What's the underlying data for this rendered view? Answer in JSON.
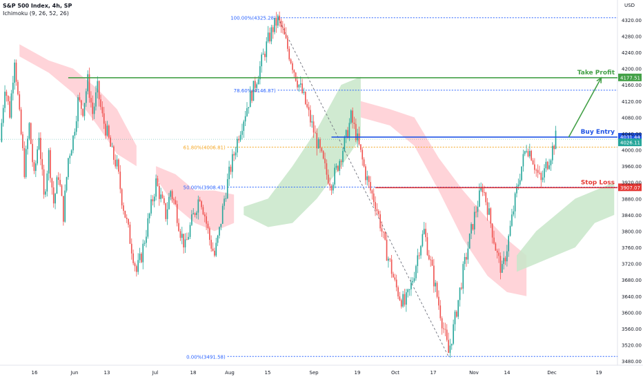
{
  "header": {
    "symbol": "S&P 500 Index, 4h, SP",
    "indicator": "Ichimoku (9, 26, 52, 26)",
    "currency": "USD"
  },
  "colors": {
    "up": "#26a69a",
    "down": "#ef5350",
    "cloud_bull": "#c8e6c9",
    "cloud_bear": "#ffcdd2",
    "take_profit": "#43a047",
    "buy_entry": "#1e53e5",
    "stop_loss": "#e53935",
    "fib": "#2962ff",
    "fib_618": "#f5a623"
  },
  "chart_data": {
    "type": "candlestick",
    "ylim": [
      3470,
      4335
    ],
    "y_ticks": [
      "4320.00",
      "4280.00",
      "4240.00",
      "4200.00",
      "4160.00",
      "4120.00",
      "4080.00",
      "4040.00",
      "4000.00",
      "3960.00",
      "3920.00",
      "3880.00",
      "3840.00",
      "3800.00",
      "3760.00",
      "3720.00",
      "3680.00",
      "3640.00",
      "3600.00",
      "3560.00",
      "3520.00",
      "3480.00"
    ],
    "x_ticks": [
      "16",
      "Jun",
      "13",
      "Jul",
      "18",
      "Aug",
      "15",
      "Sep",
      "19",
      "Oct",
      "17",
      "Nov",
      "14",
      "Dec",
      "19"
    ],
    "fib_levels": [
      {
        "label": "100.00%(4325.28)",
        "value": 4325.28
      },
      {
        "label": "78.60%(4146.87)",
        "value": 4146.87
      },
      {
        "label": "61.80%(4006.81)",
        "value": 4006.81
      },
      {
        "label": "50.00%(3908.43)",
        "value": 3908.43
      },
      {
        "label": "0.00%(3491.58)",
        "value": 3491.58
      }
    ],
    "levels": {
      "take_profit": {
        "label": "Take Profit",
        "value": 4177.51,
        "tag": "4177.51"
      },
      "buy_entry": {
        "label": "Buy Entry",
        "value": 4031.44,
        "tag": "4031.44"
      },
      "current_price": {
        "value": 4026.11,
        "tag": "4026.11"
      },
      "stop_loss": {
        "label": "Stop Loss",
        "value": 3907.07,
        "tag": "3907.07"
      }
    },
    "price_path": [
      [
        0,
        4020
      ],
      [
        3,
        4160
      ],
      [
        6,
        4090
      ],
      [
        9,
        4230
      ],
      [
        12,
        4080
      ],
      [
        15,
        3950
      ],
      [
        18,
        4060
      ],
      [
        21,
        3930
      ],
      [
        24,
        4040
      ],
      [
        27,
        3880
      ],
      [
        30,
        3990
      ],
      [
        33,
        3870
      ],
      [
        36,
        3940
      ],
      [
        39,
        3840
      ],
      [
        42,
        3980
      ],
      [
        45,
        4030
      ],
      [
        48,
        4120
      ],
      [
        51,
        4100
      ],
      [
        54,
        4170
      ],
      [
        57,
        4090
      ],
      [
        60,
        4150
      ],
      [
        63,
        4080
      ],
      [
        66,
        4040
      ],
      [
        69,
        3990
      ],
      [
        72,
        3960
      ],
      [
        75,
        3880
      ],
      [
        78,
        3820
      ],
      [
        81,
        3760
      ],
      [
        84,
        3700
      ],
      [
        87,
        3740
      ],
      [
        90,
        3800
      ],
      [
        93,
        3860
      ],
      [
        96,
        3920
      ],
      [
        99,
        3880
      ],
      [
        102,
        3840
      ],
      [
        105,
        3900
      ],
      [
        108,
        3860
      ],
      [
        111,
        3800
      ],
      [
        114,
        3760
      ],
      [
        117,
        3810
      ],
      [
        120,
        3850
      ],
      [
        123,
        3890
      ],
      [
        126,
        3840
      ],
      [
        129,
        3780
      ],
      [
        132,
        3740
      ],
      [
        135,
        3800
      ],
      [
        138,
        3880
      ],
      [
        141,
        3940
      ],
      [
        144,
        3990
      ],
      [
        147,
        4040
      ],
      [
        150,
        4080
      ],
      [
        153,
        4120
      ],
      [
        156,
        4150
      ],
      [
        159,
        4190
      ],
      [
        162,
        4230
      ],
      [
        165,
        4270
      ],
      [
        168,
        4300
      ],
      [
        171,
        4320
      ],
      [
        174,
        4290
      ],
      [
        177,
        4250
      ],
      [
        180,
        4210
      ],
      [
        183,
        4170
      ],
      [
        186,
        4140
      ],
      [
        189,
        4100
      ],
      [
        192,
        4060
      ],
      [
        195,
        4020
      ],
      [
        198,
        3980
      ],
      [
        201,
        3940
      ],
      [
        204,
        3920
      ],
      [
        207,
        3950
      ],
      [
        210,
        3990
      ],
      [
        213,
        4030
      ],
      [
        216,
        4080
      ],
      [
        219,
        4040
      ],
      [
        222,
        3990
      ],
      [
        225,
        3940
      ],
      [
        228,
        3900
      ],
      [
        231,
        3870
      ],
      [
        234,
        3820
      ],
      [
        237,
        3760
      ],
      [
        240,
        3720
      ],
      [
        243,
        3670
      ],
      [
        246,
        3640
      ],
      [
        249,
        3620
      ],
      [
        252,
        3650
      ],
      [
        255,
        3700
      ],
      [
        258,
        3760
      ],
      [
        261,
        3800
      ],
      [
        264,
        3740
      ],
      [
        267,
        3680
      ],
      [
        270,
        3620
      ],
      [
        273,
        3560
      ],
      [
        276,
        3500
      ],
      [
        279,
        3560
      ],
      [
        282,
        3630
      ],
      [
        285,
        3700
      ],
      [
        288,
        3760
      ],
      [
        291,
        3820
      ],
      [
        294,
        3870
      ],
      [
        297,
        3910
      ],
      [
        300,
        3860
      ],
      [
        303,
        3800
      ],
      [
        306,
        3740
      ],
      [
        309,
        3700
      ],
      [
        312,
        3760
      ],
      [
        315,
        3830
      ],
      [
        318,
        3900
      ],
      [
        321,
        3960
      ],
      [
        324,
        4010
      ],
      [
        327,
        3990
      ],
      [
        330,
        3950
      ],
      [
        333,
        3920
      ],
      [
        336,
        3960
      ],
      [
        339,
        3990
      ],
      [
        342,
        4030
      ]
    ],
    "cloud_segments": [
      {
        "kind": "bear",
        "top": [
          [
            12,
            4260
          ],
          [
            30,
            4220
          ],
          [
            45,
            4200
          ],
          [
            60,
            4150
          ],
          [
            72,
            4100
          ],
          [
            84,
            4010
          ]
        ],
        "bottom": [
          [
            12,
            4230
          ],
          [
            30,
            4190
          ],
          [
            45,
            4140
          ],
          [
            60,
            4060
          ],
          [
            72,
            3990
          ],
          [
            84,
            3960
          ]
        ]
      },
      {
        "kind": "bear",
        "top": [
          [
            96,
            3960
          ],
          [
            108,
            3940
          ],
          [
            120,
            3900
          ],
          [
            132,
            3900
          ],
          [
            144,
            3890
          ]
        ],
        "bottom": [
          [
            96,
            3930
          ],
          [
            108,
            3860
          ],
          [
            120,
            3820
          ],
          [
            132,
            3800
          ],
          [
            144,
            3820
          ]
        ]
      },
      {
        "kind": "bull",
        "top": [
          [
            150,
            3860
          ],
          [
            165,
            3880
          ],
          [
            180,
            3960
          ],
          [
            195,
            4050
          ],
          [
            210,
            4160
          ],
          [
            222,
            4180
          ]
        ],
        "bottom": [
          [
            150,
            3840
          ],
          [
            165,
            3810
          ],
          [
            180,
            3820
          ],
          [
            195,
            3880
          ],
          [
            210,
            3960
          ],
          [
            222,
            4030
          ]
        ]
      },
      {
        "kind": "bear",
        "top": [
          [
            222,
            4120
          ],
          [
            240,
            4100
          ],
          [
            255,
            4080
          ],
          [
            270,
            3980
          ],
          [
            285,
            3900
          ],
          [
            300,
            3830
          ],
          [
            312,
            3780
          ],
          [
            324,
            3740
          ]
        ],
        "bottom": [
          [
            222,
            4080
          ],
          [
            240,
            4060
          ],
          [
            255,
            4010
          ],
          [
            270,
            3900
          ],
          [
            285,
            3780
          ],
          [
            300,
            3690
          ],
          [
            312,
            3650
          ],
          [
            324,
            3640
          ]
        ]
      },
      {
        "kind": "bull",
        "top": [
          [
            318,
            3740
          ],
          [
            330,
            3800
          ],
          [
            342,
            3840
          ],
          [
            354,
            3880
          ],
          [
            366,
            3900
          ],
          [
            378,
            3920
          ]
        ],
        "bottom": [
          [
            318,
            3700
          ],
          [
            330,
            3720
          ],
          [
            342,
            3740
          ],
          [
            354,
            3760
          ],
          [
            366,
            3820
          ],
          [
            378,
            3840
          ]
        ]
      }
    ],
    "diagonal": {
      "from": [
        171,
        4325.28
      ],
      "to": [
        276,
        3491.58
      ]
    },
    "arrow": {
      "from": [
        350,
        4031.44
      ],
      "to": [
        370,
        4177.51
      ]
    }
  }
}
